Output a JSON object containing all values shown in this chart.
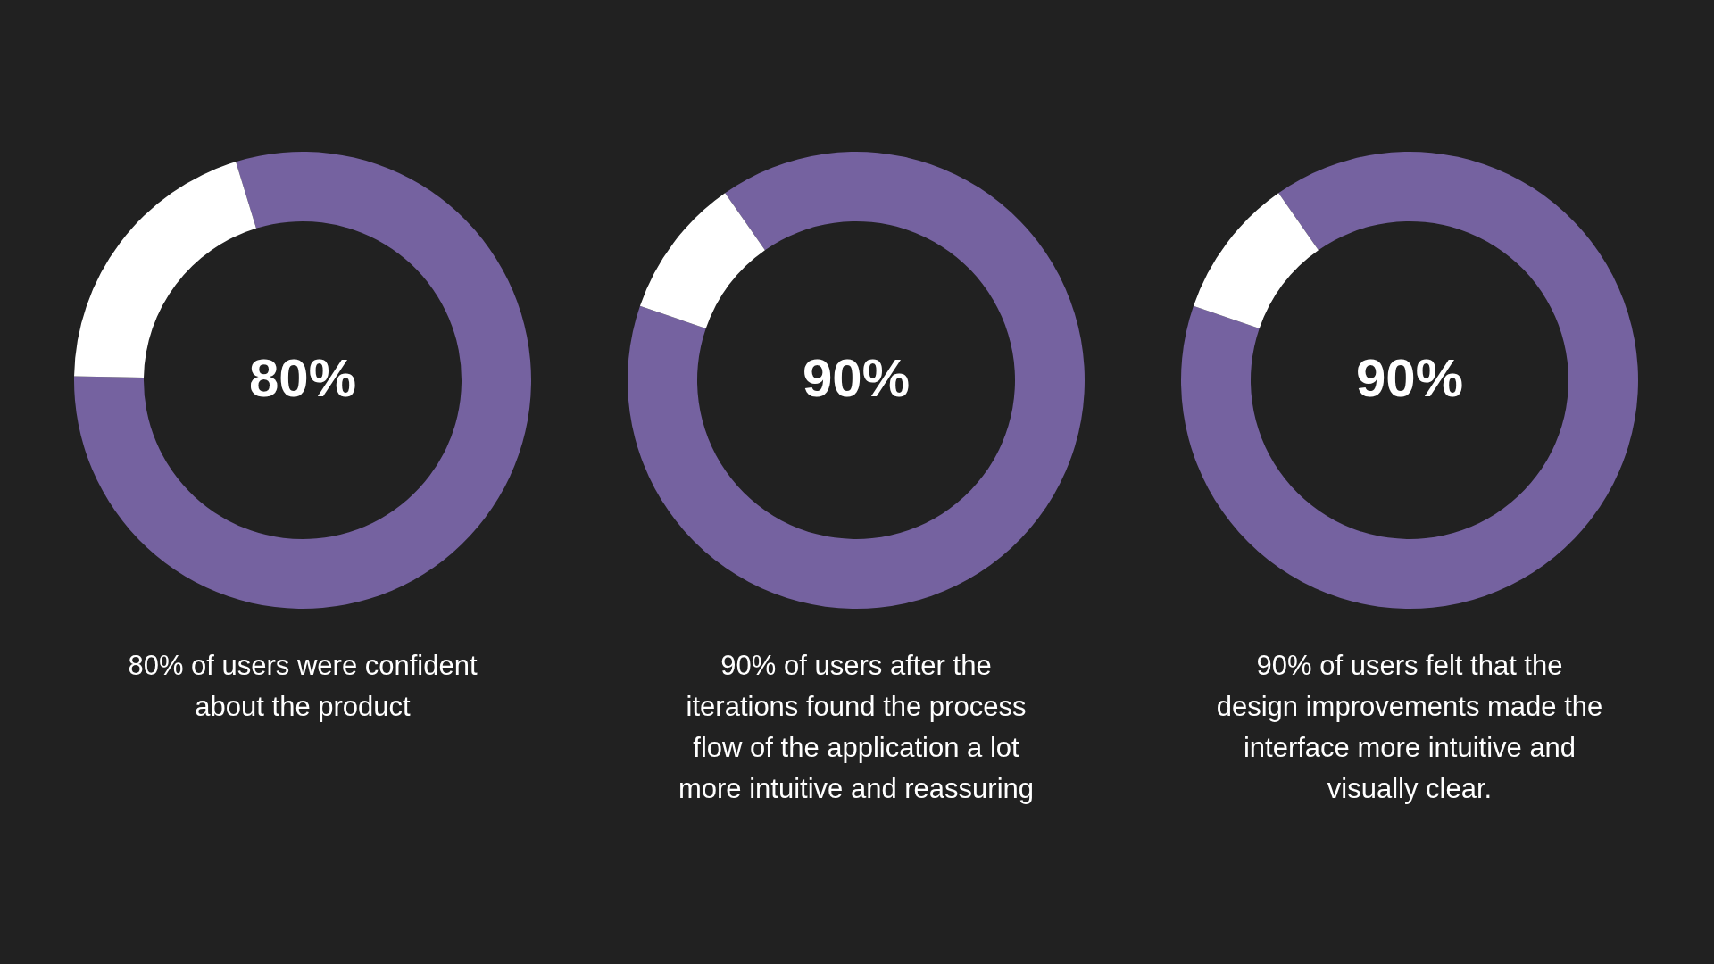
{
  "chart_data": [
    {
      "type": "donut",
      "title": "80% of users were confident about the product",
      "categories": [
        null,
        null
      ],
      "values": [
        80,
        20
      ],
      "colors": [
        "#7562a0",
        "#ffffff"
      ],
      "annotations": [
        "80%"
      ]
    },
    {
      "type": "donut",
      "title": "90% of users after the iterations found the process flow of the application a lot more intuitive and reassuring",
      "categories": [
        null,
        null
      ],
      "values": [
        90,
        10
      ],
      "colors": [
        "#7562a0",
        "#ffffff"
      ],
      "annotations": [
        "90%"
      ]
    },
    {
      "type": "donut",
      "title": "90% of users felt that the design improvements made the interface more intuitive and visually clear.",
      "categories": [
        null,
        null
      ],
      "values": [
        90,
        10
      ],
      "colors": [
        "#7562a0",
        "#ffffff"
      ],
      "annotations": [
        "90%"
      ]
    }
  ]
}
